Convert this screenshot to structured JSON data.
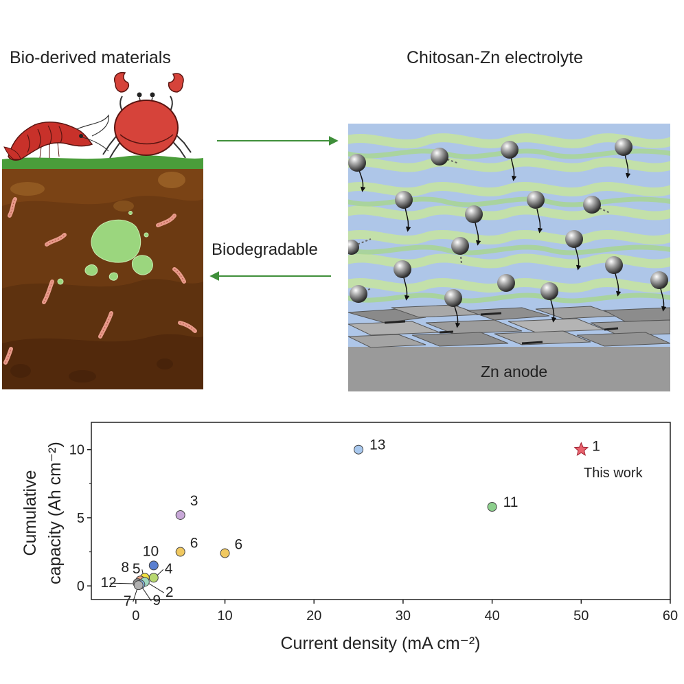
{
  "diagram": {
    "left_title": "Bio-derived materials",
    "right_title": "Chitosan-Zn electrolyte",
    "arrow_label": "Biodegradable",
    "anode_label": "Zn anode"
  },
  "colors": {
    "soil": "#7a4315",
    "grass": "#4a9d3a",
    "arrow": "#3f8f3a",
    "electrolyte_bg": "#aec6e8",
    "chitosan": "#c5e2a6",
    "anode": "#9a9a9a"
  },
  "chart_data": {
    "type": "scatter",
    "xlabel": "Current density (mA cm⁻²)",
    "ylabel_line1": "Cumulative",
    "ylabel_line2": "capacity (Ah cm⁻²)",
    "xlim": [
      -5,
      60
    ],
    "ylim": [
      -1,
      12
    ],
    "xticks": [
      0,
      10,
      20,
      30,
      40,
      50,
      60
    ],
    "yticks": [
      0,
      5,
      10
    ],
    "grid": false,
    "annotation": "This work",
    "points": [
      {
        "label": "1",
        "x": 50,
        "y": 10,
        "color": "#e8626d",
        "marker": "star"
      },
      {
        "label": "13",
        "x": 25,
        "y": 10,
        "color": "#a8c8ee",
        "marker": "circle"
      },
      {
        "label": "11",
        "x": 40,
        "y": 5.8,
        "color": "#8ccf8c",
        "marker": "circle"
      },
      {
        "label": "3",
        "x": 5,
        "y": 5.2,
        "color": "#c8a8d8",
        "marker": "circle"
      },
      {
        "label": "6",
        "x": 5,
        "y": 2.5,
        "color": "#f0c860",
        "marker": "circle"
      },
      {
        "label": "6",
        "x": 10,
        "y": 2.4,
        "color": "#f0c860",
        "marker": "circle"
      },
      {
        "label": "10",
        "x": 2,
        "y": 1.5,
        "color": "#5a7fd0",
        "marker": "circle"
      },
      {
        "label": "4",
        "x": 2,
        "y": 0.6,
        "color": "#b8d870",
        "marker": "circle"
      },
      {
        "label": "5",
        "x": 1,
        "y": 0.6,
        "color": "#f0e040",
        "marker": "circle"
      },
      {
        "label": "8",
        "x": 0.5,
        "y": 0.4,
        "color": "#e8a080",
        "marker": "circle"
      },
      {
        "label": "2",
        "x": 1,
        "y": 0.3,
        "color": "#a0d8c0",
        "marker": "circle"
      },
      {
        "label": "12",
        "x": 0.2,
        "y": 0.2,
        "color": "#909090",
        "marker": "circle"
      },
      {
        "label": "9",
        "x": 0.5,
        "y": 0.1,
        "color": "#88bbee",
        "marker": "circle"
      },
      {
        "label": "7",
        "x": 0.3,
        "y": 0.05,
        "color": "#b0b0b0",
        "marker": "circle"
      }
    ]
  }
}
